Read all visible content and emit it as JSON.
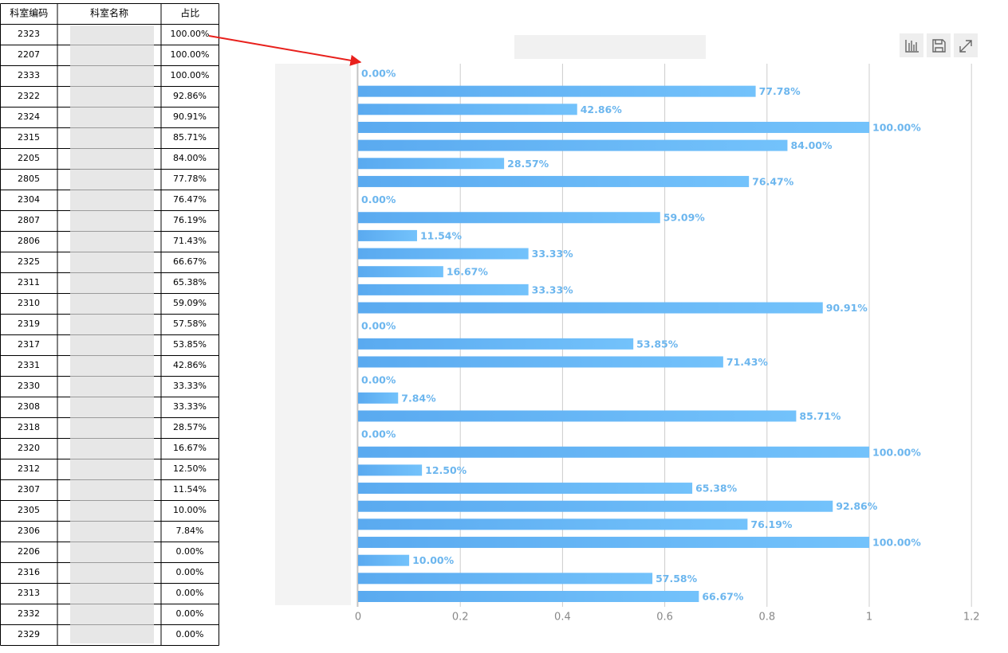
{
  "table": {
    "header": [
      "科室编码",
      "科室名称",
      "占比"
    ],
    "rows": [
      [
        "2323",
        "100.00%"
      ],
      [
        "2207",
        "100.00%"
      ],
      [
        "2333",
        "100.00%"
      ],
      [
        "2322",
        "92.86%"
      ],
      [
        "2324",
        "90.91%"
      ],
      [
        "2315",
        "85.71%"
      ],
      [
        "2205",
        "84.00%"
      ],
      [
        "2805",
        "77.78%"
      ],
      [
        "2304",
        "76.47%"
      ],
      [
        "2807",
        "76.19%"
      ],
      [
        "2806",
        "71.43%"
      ],
      [
        "2325",
        "66.67%"
      ],
      [
        "2311",
        "65.38%"
      ],
      [
        "2310",
        "59.09%"
      ],
      [
        "2319",
        "57.58%"
      ],
      [
        "2317",
        "53.85%"
      ],
      [
        "2331",
        "42.86%"
      ],
      [
        "2330",
        "33.33%"
      ],
      [
        "2308",
        "33.33%"
      ],
      [
        "2318",
        "28.57%"
      ],
      [
        "2320",
        "16.67%"
      ],
      [
        "2312",
        "12.50%"
      ],
      [
        "2307",
        "11.54%"
      ],
      [
        "2305",
        "10.00%"
      ],
      [
        "2306",
        "7.84%"
      ],
      [
        "2206",
        "0.00%"
      ],
      [
        "2316",
        "0.00%"
      ],
      [
        "2313",
        "0.00%"
      ],
      [
        "2332",
        "0.00%"
      ],
      [
        "2329",
        "0.00%"
      ]
    ]
  },
  "chart_data": {
    "type": "hbar",
    "categories": [
      null,
      null,
      null,
      null,
      null,
      null,
      null,
      null,
      null,
      null,
      null,
      null,
      null,
      null,
      null,
      null,
      null,
      null,
      null,
      null,
      null,
      null,
      null,
      null,
      null,
      null,
      null,
      null,
      null,
      null
    ],
    "values": [
      0,
      0.7778,
      0.4286,
      1,
      0.84,
      0.2857,
      0.7647,
      0,
      0.5909,
      0.1154,
      0.3333,
      0.1667,
      0.3333,
      0.9091,
      0,
      0.5385,
      0.7143,
      0,
      0.0784,
      0.8571,
      0,
      1,
      0.125,
      0.6538,
      0.9286,
      0.7619,
      1,
      0.1,
      0.5758,
      0.6667
    ],
    "value_labels": [
      "0.00%",
      "77.78%",
      "42.86%",
      "100.00%",
      "84.00%",
      "28.57%",
      "76.47%",
      "0.00%",
      "59.09%",
      "11.54%",
      "33.33%",
      "16.67%",
      "33.33%",
      "90.91%",
      "0.00%",
      "53.85%",
      "71.43%",
      "0.00%",
      "7.84%",
      "85.71%",
      "0.00%",
      "100.00%",
      "12.50%",
      "65.38%",
      "92.86%",
      "76.19%",
      "100.00%",
      "10.00%",
      "57.58%",
      "66.67%"
    ],
    "color": "#64b5f6",
    "xlim": [
      0,
      1.2
    ],
    "xticks": [
      0,
      0.2,
      0.4,
      0.6,
      0.8,
      1,
      1.2
    ],
    "grid": true
  }
}
